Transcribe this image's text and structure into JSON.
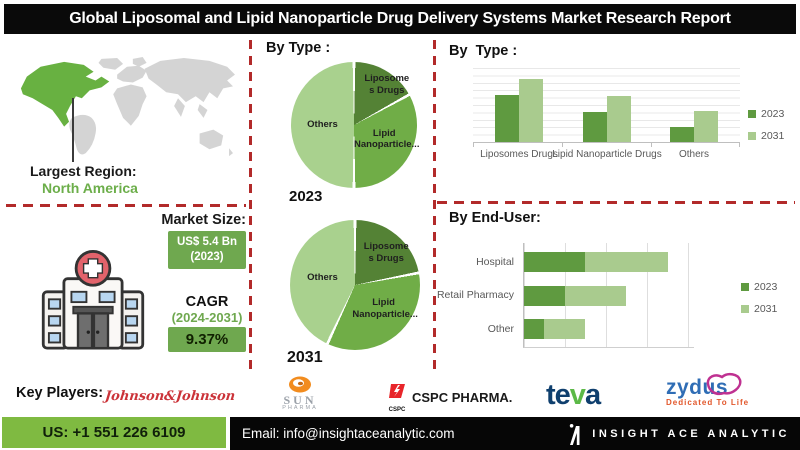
{
  "title": "Global Liposomal and Lipid Nanoparticle Drug Delivery Systems Market Research Report",
  "palette": {
    "green_dark": "#548235",
    "green_mid": "#70ad47",
    "green_light": "#a9d18e",
    "green_box": "#6fa84f",
    "green_footer": "#7fba41",
    "map_region_green": "#68b141",
    "map_gray": "#d4d4d4",
    "dash_red": "#b22a2a"
  },
  "left_panel": {
    "largest_region_label": "Largest Region:",
    "largest_region_value": "North America",
    "market_size_label": "Market Size:",
    "market_size_value": "US$ 5.4 Bn",
    "market_size_year": "(2023)",
    "cagr_label": "CAGR",
    "cagr_period": "(2024-2031)",
    "cagr_value": "9.37%"
  },
  "middle_panel": {
    "header": "By Type :",
    "pie_2023_label": "2023",
    "pie_2031_label": "2031"
  },
  "pie_labels": {
    "liposomes_l1": "Liposome",
    "liposomes_l2": "s Drugs",
    "lipid_l1": "Lipid",
    "lipid_l2": "Nanoparticle...",
    "others": "Others"
  },
  "right_panel": {
    "bar_header": "By  Type :",
    "enduser_header": "By End-User:"
  },
  "key_players": {
    "label": "Key Players:",
    "companies": [
      "Johnson & Johnson",
      "Sun Pharma",
      "CSPC Pharma",
      "Teva",
      "Zydus"
    ],
    "jnj_text": "Johnson&Johnson",
    "sun_name": "SUN",
    "sun_sub": "PHARMA",
    "cspc_icon_text": "CSPC",
    "cspc_name": "CSPC PHARMA.",
    "teva_t1": "te",
    "teva_v": "v",
    "teva_a": "a",
    "zydus_name": "zydus",
    "zydus_tagline": "Dedicated To Life"
  },
  "footer": {
    "phone": "US: +1 551 226 6109",
    "email": "Email: info@insightaceanalytic.com",
    "brand": "INSIGHT ACE ANALYTIC"
  },
  "chart_data": [
    {
      "id": "pie_2023",
      "type": "pie",
      "title": "By Type : 2023",
      "labels": [
        "Liposomes Drugs",
        "Lipid Nanoparticle...",
        "Others"
      ],
      "values_pct": [
        17,
        33,
        50
      ],
      "colors": [
        "#548235",
        "#70ad47",
        "#a9d18e"
      ],
      "start_angle_deg": 0,
      "note": "share estimated from slice angles; no numeric labels shown"
    },
    {
      "id": "pie_2031",
      "type": "pie",
      "title": "By Type : 2031",
      "labels": [
        "Liposomes Drugs",
        "Lipid Nanoparticle...",
        "Others"
      ],
      "values_pct": [
        22,
        35,
        43
      ],
      "colors": [
        "#548235",
        "#70ad47",
        "#a9d18e"
      ],
      "start_angle_deg": 0,
      "note": "share estimated from slice angles; no numeric labels shown"
    },
    {
      "id": "by_type_bars",
      "type": "bar",
      "title": "By  Type :",
      "categories": [
        "Liposomes Drugs",
        "Lipid Nanoparticle Drugs",
        "Others"
      ],
      "series": [
        {
          "name": "2023",
          "values": [
            47,
            30,
            15
          ],
          "color": "#5f9a40"
        },
        {
          "name": "2031",
          "values": [
            63,
            46,
            31
          ],
          "color": "#a9cb8e"
        }
      ],
      "ylim": [
        0,
        74
      ],
      "grid": "horizontal",
      "legend_position": "right",
      "note": "y-axis unlabeled; values are relative bar heights read from pixels"
    },
    {
      "id": "by_enduser_bars",
      "type": "bar",
      "orientation": "horizontal-stacked",
      "title": "By End-User:",
      "categories": [
        "Hospital",
        "Retail Pharmacy",
        "Other"
      ],
      "series": [
        {
          "name": "2023",
          "values": [
            61,
            41,
            20
          ],
          "color": "#5f9a40"
        },
        {
          "name": "2031",
          "values": [
            83,
            61,
            41
          ],
          "color": "#a9cb8e"
        }
      ],
      "xlim": [
        0,
        170
      ],
      "grid": "vertical",
      "legend_position": "right",
      "note": "x-axis unlabeled; values are relative bar widths read from pixels"
    }
  ]
}
